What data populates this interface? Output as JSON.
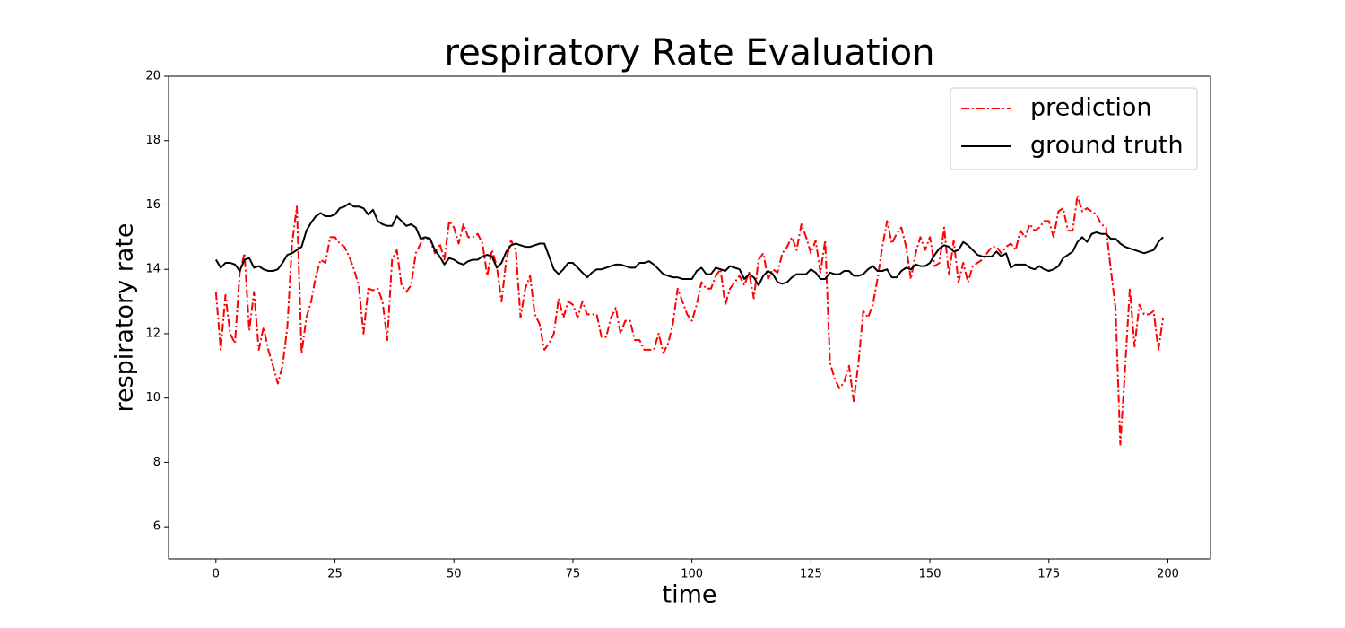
{
  "chart_data": {
    "type": "line",
    "title": "respiratory Rate Evaluation",
    "xlabel": "time",
    "ylabel": "respiratory rate",
    "x": [
      0,
      1,
      2,
      3,
      4,
      5,
      6,
      7,
      8,
      9,
      10,
      11,
      12,
      13,
      14,
      15,
      16,
      17,
      18,
      19,
      20,
      21,
      22,
      23,
      24,
      25,
      26,
      27,
      28,
      29,
      30,
      31,
      32,
      33,
      34,
      35,
      36,
      37,
      38,
      39,
      40,
      41,
      42,
      43,
      44,
      45,
      46,
      47,
      48,
      49,
      50,
      51,
      52,
      53,
      54,
      55,
      56,
      57,
      58,
      59,
      60,
      61,
      62,
      63,
      64,
      65,
      66,
      67,
      68,
      69,
      70,
      71,
      72,
      73,
      74,
      75,
      76,
      77,
      78,
      79,
      80,
      81,
      82,
      83,
      84,
      85,
      86,
      87,
      88,
      89,
      90,
      91,
      92,
      93,
      94,
      95,
      96,
      97,
      98,
      99,
      100,
      101,
      102,
      103,
      104,
      105,
      106,
      107,
      108,
      109,
      110,
      111,
      112,
      113,
      114,
      115,
      116,
      117,
      118,
      119,
      120,
      121,
      122,
      123,
      124,
      125,
      126,
      127,
      128,
      129,
      130,
      131,
      132,
      133,
      134,
      135,
      136,
      137,
      138,
      139,
      140,
      141,
      142,
      143,
      144,
      145,
      146,
      147,
      148,
      149,
      150,
      151,
      152,
      153,
      154,
      155,
      156,
      157,
      158,
      159,
      160,
      161,
      162,
      163,
      164,
      165,
      166,
      167,
      168,
      169,
      170,
      171,
      172,
      173,
      174,
      175,
      176,
      177,
      178,
      179,
      180,
      181,
      182,
      183,
      184,
      185,
      186,
      187,
      188,
      189,
      190,
      191,
      192,
      193,
      194,
      195,
      196,
      197,
      198,
      199
    ],
    "series": [
      {
        "name": "prediction",
        "color": "#ff0000",
        "dash": "dashdot",
        "values": [
          13.3,
          11.5,
          13.2,
          12.0,
          11.7,
          13.9,
          14.5,
          12.1,
          13.3,
          11.5,
          12.2,
          11.5,
          11.0,
          10.45,
          11.0,
          12.2,
          14.8,
          15.95,
          11.4,
          12.5,
          13.0,
          13.8,
          14.3,
          14.2,
          15.0,
          15.0,
          14.8,
          14.7,
          14.4,
          14.0,
          13.5,
          12.0,
          13.4,
          13.35,
          13.4,
          13.0,
          11.8,
          14.3,
          14.6,
          13.5,
          13.3,
          13.5,
          14.5,
          14.8,
          15.0,
          14.9,
          14.5,
          14.8,
          14.3,
          15.5,
          15.3,
          14.8,
          15.4,
          15.0,
          15.0,
          15.1,
          14.8,
          13.8,
          14.6,
          14.1,
          13.0,
          14.3,
          14.9,
          14.6,
          12.5,
          13.4,
          13.8,
          12.6,
          12.3,
          11.5,
          11.7,
          12.0,
          13.1,
          12.5,
          13.0,
          12.9,
          12.5,
          13.0,
          12.6,
          12.6,
          12.6,
          11.9,
          11.9,
          12.5,
          12.8,
          12.0,
          12.4,
          12.4,
          11.8,
          11.8,
          11.5,
          11.5,
          11.5,
          12.0,
          11.4,
          11.7,
          12.3,
          13.4,
          13.0,
          12.6,
          12.4,
          12.9,
          13.6,
          13.4,
          13.4,
          13.8,
          14.0,
          12.9,
          13.4,
          13.6,
          13.8,
          13.5,
          13.9,
          13.1,
          14.3,
          14.5,
          13.7,
          14.0,
          13.9,
          14.5,
          14.7,
          15.0,
          14.6,
          15.4,
          15.0,
          14.5,
          14.9,
          13.9,
          14.9,
          11.1,
          10.6,
          10.3,
          10.5,
          11.0,
          9.9,
          11.1,
          12.7,
          12.5,
          12.9,
          13.7,
          14.7,
          15.5,
          14.8,
          15.1,
          15.3,
          14.7,
          13.7,
          14.5,
          15.0,
          14.6,
          15.0,
          14.1,
          14.2,
          15.3,
          13.8,
          14.9,
          13.6,
          14.2,
          13.6,
          14.1,
          14.2,
          14.3,
          14.5,
          14.7,
          14.7,
          14.5,
          14.7,
          14.8,
          14.6,
          15.2,
          15.0,
          15.4,
          15.2,
          15.3,
          15.5,
          15.5,
          15.0,
          15.8,
          15.9,
          15.2,
          15.2,
          16.3,
          15.8,
          15.9,
          15.8,
          15.7,
          15.4,
          15.3,
          14.0,
          12.8,
          8.55,
          10.9,
          13.4,
          11.6,
          12.9,
          12.6,
          12.6,
          12.7,
          11.5,
          12.5
        ]
      },
      {
        "name": "ground truth",
        "color": "#000000",
        "dash": "solid",
        "values": [
          14.3,
          14.05,
          14.2,
          14.2,
          14.15,
          13.95,
          14.3,
          14.35,
          14.05,
          14.1,
          14.0,
          13.95,
          13.95,
          14.0,
          14.2,
          14.45,
          14.5,
          14.6,
          14.7,
          15.2,
          15.45,
          15.65,
          15.75,
          15.65,
          15.65,
          15.7,
          15.9,
          15.95,
          16.05,
          15.95,
          15.95,
          15.9,
          15.7,
          15.85,
          15.5,
          15.4,
          15.35,
          15.35,
          15.65,
          15.5,
          15.35,
          15.4,
          15.3,
          14.95,
          15.0,
          14.95,
          14.6,
          14.4,
          14.15,
          14.35,
          14.3,
          14.2,
          14.15,
          14.25,
          14.3,
          14.3,
          14.4,
          14.45,
          14.4,
          14.05,
          14.2,
          14.55,
          14.75,
          14.8,
          14.75,
          14.7,
          14.7,
          14.75,
          14.8,
          14.8,
          14.4,
          14.0,
          13.85,
          14.0,
          14.2,
          14.2,
          14.05,
          13.9,
          13.75,
          13.9,
          14.0,
          14.0,
          14.05,
          14.1,
          14.15,
          14.15,
          14.1,
          14.05,
          14.05,
          14.2,
          14.2,
          14.25,
          14.15,
          14.0,
          13.85,
          13.8,
          13.75,
          13.75,
          13.7,
          13.7,
          13.7,
          13.95,
          14.05,
          13.85,
          13.85,
          14.05,
          14.0,
          13.95,
          14.1,
          14.05,
          14.0,
          13.7,
          13.85,
          13.75,
          13.5,
          13.8,
          13.95,
          13.85,
          13.6,
          13.55,
          13.6,
          13.75,
          13.85,
          13.85,
          13.85,
          14.0,
          13.9,
          13.7,
          13.7,
          13.9,
          13.85,
          13.85,
          13.95,
          13.95,
          13.8,
          13.8,
          13.85,
          14.0,
          14.1,
          13.95,
          13.95,
          14.0,
          13.75,
          13.75,
          13.95,
          14.05,
          14.0,
          14.15,
          14.1,
          14.1,
          14.2,
          14.45,
          14.65,
          14.75,
          14.7,
          14.55,
          14.6,
          14.85,
          14.75,
          14.6,
          14.45,
          14.4,
          14.4,
          14.4,
          14.55,
          14.4,
          14.5,
          14.05,
          14.15,
          14.15,
          14.15,
          14.05,
          14.0,
          14.1,
          14.0,
          13.95,
          14.0,
          14.1,
          14.35,
          14.45,
          14.55,
          14.85,
          15.0,
          14.85,
          15.1,
          15.15,
          15.1,
          15.1,
          14.95,
          14.95,
          14.8,
          14.7,
          14.65,
          14.6,
          14.55,
          14.5,
          14.55,
          14.6,
          14.85,
          15.0
        ]
      }
    ],
    "xlim": [
      -9.95,
      208.95
    ],
    "ylim": [
      5,
      20
    ],
    "xticks": [
      0,
      25,
      50,
      75,
      100,
      125,
      150,
      175,
      200
    ],
    "yticks": [
      6,
      8,
      10,
      12,
      14,
      16,
      18,
      20
    ],
    "legend": "upper right",
    "grid": false
  }
}
